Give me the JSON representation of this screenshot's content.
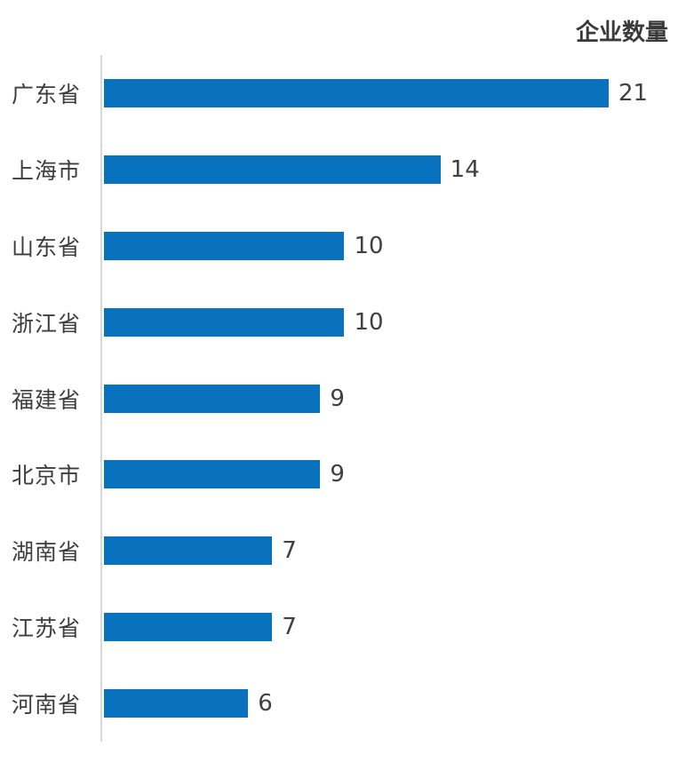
{
  "title": "企业数量",
  "colors": {
    "bar": "#0872BE",
    "title_text": "#3A3A3A",
    "category_text": "#3D3D3D",
    "value_text": "#404040",
    "axis_line": "#D9D9D9",
    "background": "#FFFFFF"
  },
  "chart_data": {
    "type": "bar",
    "orientation": "horizontal",
    "title": "企业数量",
    "xlabel": "",
    "ylabel": "",
    "categories": [
      "广东省",
      "上海市",
      "山东省",
      "浙江省",
      "福建省",
      "北京市",
      "湖南省",
      "江苏省",
      "河南省"
    ],
    "values": [
      21,
      14,
      10,
      10,
      9,
      9,
      7,
      7,
      6
    ],
    "xlim": [
      0,
      21
    ],
    "grid": false,
    "legend": "none",
    "value_labels_shown": true
  }
}
